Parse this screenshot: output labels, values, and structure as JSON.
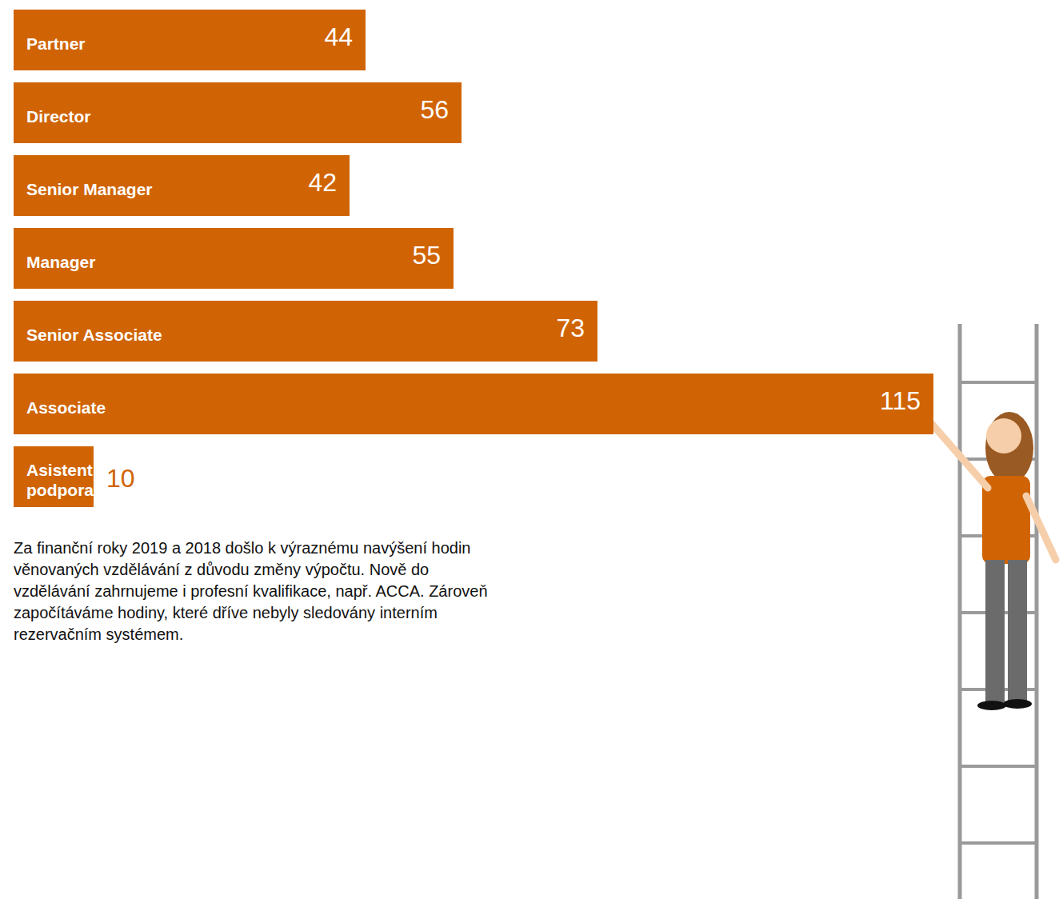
{
  "chart_data": {
    "type": "bar",
    "orientation": "horizontal",
    "categories": [
      "Partner",
      "Director",
      "Senior Manager",
      "Manager",
      "Senior Associate",
      "Associate",
      "Asistent, podpora"
    ],
    "values": [
      44,
      56,
      42,
      55,
      73,
      115,
      10
    ],
    "color": "#d06404",
    "xlim": [
      0,
      115
    ],
    "tick_labels": false,
    "data_labels": true,
    "grid": false,
    "annotation": "Za finanční roky 2019 a 2018 došlo k výraznému navýšení hodin věnovaných vzdělávání z důvodu změny výpočtu. Nově do vzdělávání zahrnujeme i profesní kvalifikace, např. ACCA. Zároveň započítáváme hodiny, které dříve nebyly sledovány interním rezervačním systémem."
  }
}
